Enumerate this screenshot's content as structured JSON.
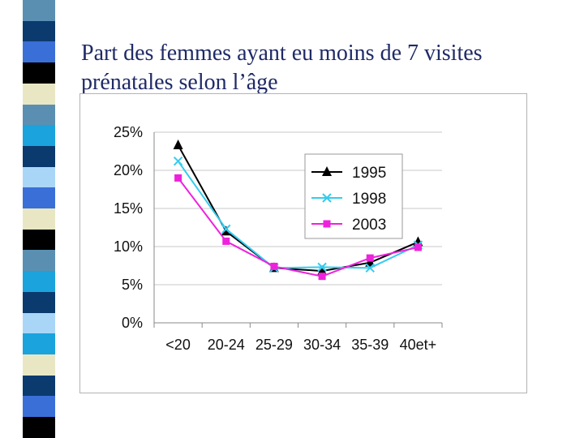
{
  "slide": {
    "title_line1": "Part des femmes ayant eu moins de 7 visites",
    "title_line2": "prénatales selon l’âge",
    "stripe_colors": [
      "#5b8fb1",
      "#0b3a6e",
      "#3a6fd8",
      "#000000",
      "#e9e7c3",
      "#5b8fb1",
      "#1aa3dd",
      "#0b3a6e",
      "#a9d6f7",
      "#3a6fd8",
      "#e9e7c3",
      "#000000",
      "#5b8fb1",
      "#1aa3dd",
      "#0b3a6e",
      "#a9d6f7",
      "#1aa3dd",
      "#e9e7c3",
      "#0b3a6e",
      "#3a6fd8",
      "#000000"
    ]
  },
  "chart_data": {
    "type": "line",
    "title": "",
    "xlabel": "",
    "ylabel": "",
    "categories": [
      "<20",
      "20-24",
      "25-29",
      "30-34",
      "35-39",
      "40et+"
    ],
    "ylim": [
      0,
      25
    ],
    "yticks": [
      "0%",
      "5%",
      "10%",
      "15%",
      "20%",
      "25%"
    ],
    "grid": true,
    "legend_position": "top-right",
    "series": [
      {
        "name": "1995",
        "values": [
          23.3,
          12.0,
          7.2,
          6.8,
          7.9,
          10.6
        ],
        "color": "#000000",
        "marker": "triangle"
      },
      {
        "name": "1998",
        "values": [
          21.2,
          12.3,
          7.2,
          7.3,
          7.2,
          10.2
        ],
        "color": "#33ccee",
        "marker": "x"
      },
      {
        "name": "2003",
        "values": [
          19.0,
          10.7,
          7.4,
          6.1,
          8.5,
          9.9
        ],
        "color": "#ee22dd",
        "marker": "square"
      }
    ]
  }
}
